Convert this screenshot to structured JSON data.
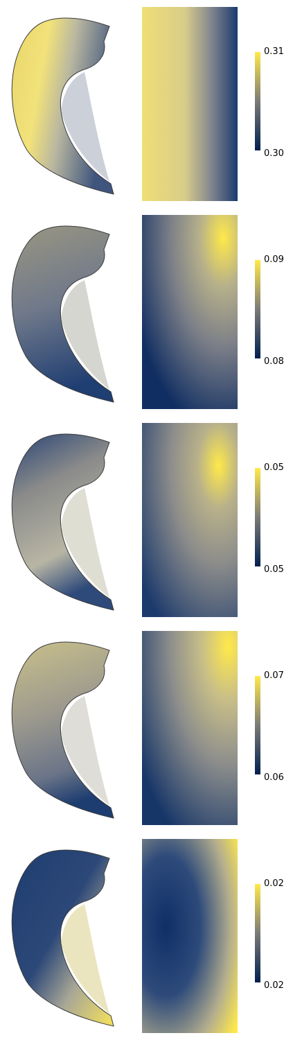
{
  "colormap": {
    "low": "#00204d",
    "mid": "#7c7b78",
    "high": "#ffea46"
  },
  "panels": [
    {
      "max_label": "0.31",
      "min_label": "0.30"
    },
    {
      "max_label": "0.09",
      "min_label": "0.08"
    },
    {
      "max_label": "0.05",
      "min_label": "0.05"
    },
    {
      "max_label": "0.07",
      "min_label": "0.06"
    },
    {
      "max_label": "0.02",
      "min_label": "0.02"
    }
  ]
}
